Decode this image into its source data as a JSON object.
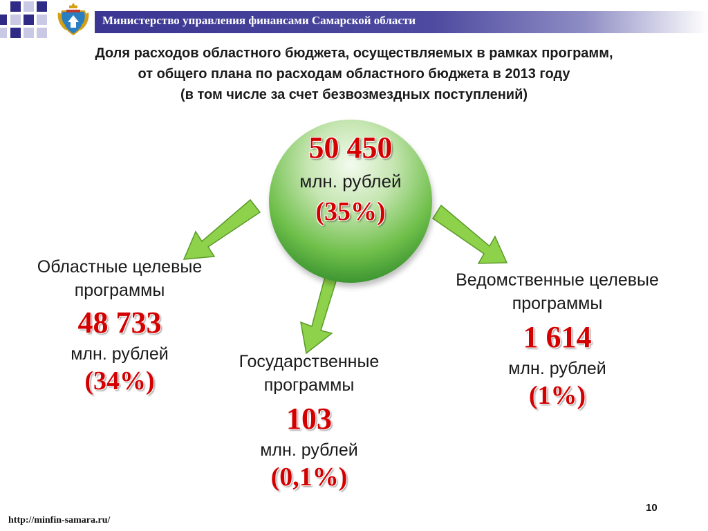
{
  "header": {
    "title": "Министерство управления финансами Самарской области",
    "accent_color": "#2e2a86"
  },
  "slide": {
    "title_lines": [
      "Доля расходов областного бюджета, осуществляемых в рамках программ,",
      "от общего плана по расходам областного бюджета в 2013 году",
      "(в том числе за счет безвозмездных поступлений)"
    ]
  },
  "total": {
    "value": "50 450",
    "unit": "млн. рублей",
    "percent": "(35%)"
  },
  "programs": {
    "regional": {
      "label_lines": [
        "Областные целевые",
        "программы"
      ],
      "value": "48 733",
      "unit": "млн. рублей",
      "percent": "(34%)"
    },
    "state": {
      "label_lines": [
        "Государственные",
        "программы"
      ],
      "value": "103",
      "unit": "млн. рублей",
      "percent": "(0,1%)"
    },
    "departmental": {
      "label_lines": [
        "Ведомственные целевые",
        "программы"
      ],
      "value": "1 614",
      "unit": "млн. рублей",
      "percent": "(1%)"
    }
  },
  "footer": {
    "page_number": "10",
    "url": "http://minfin-samara.ru/"
  },
  "colors": {
    "value_red": "#d40000",
    "arrow_green": "#8ed14a"
  }
}
